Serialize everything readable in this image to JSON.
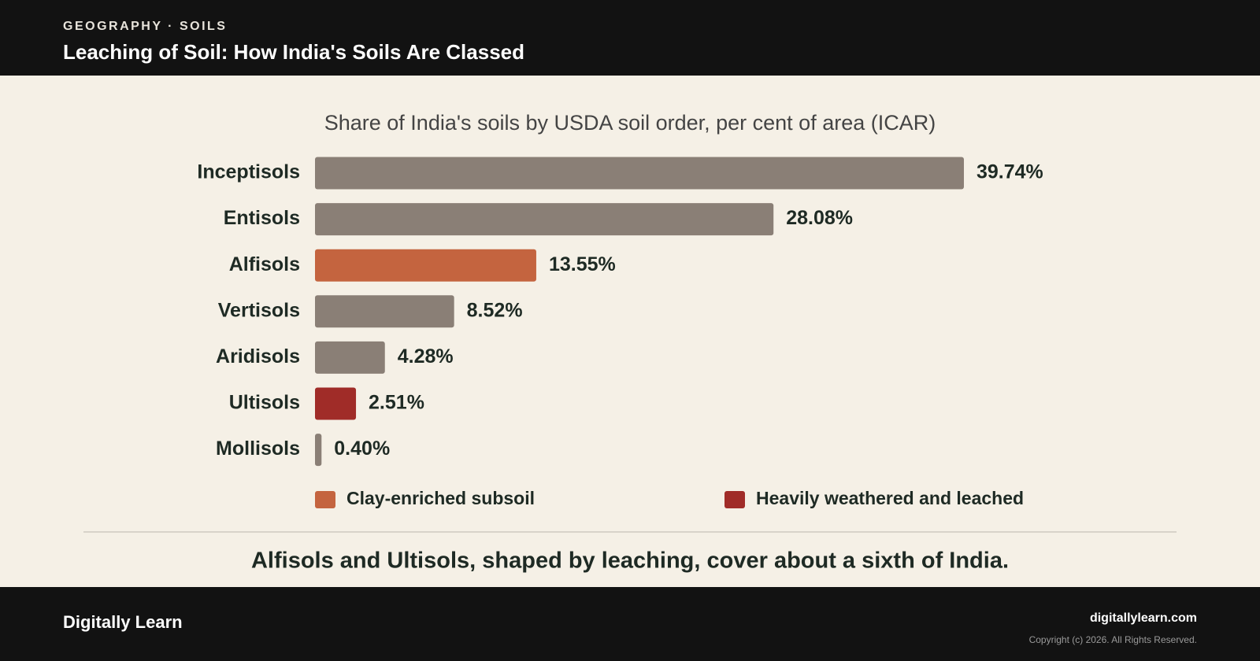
{
  "header": {
    "kicker": "GEOGRAPHY · SOILS",
    "title": "Leaching of Soil: How India's Soils Are Classed"
  },
  "chart_data": {
    "type": "bar",
    "orientation": "horizontal",
    "subtitle": "Share of India's soils by USDA soil order, per cent of area (ICAR)",
    "categories": [
      "Inceptisols",
      "Entisols",
      "Alfisols",
      "Vertisols",
      "Aridisols",
      "Ultisols",
      "Mollisols"
    ],
    "values": [
      39.74,
      28.08,
      13.55,
      8.52,
      4.28,
      2.51,
      0.4
    ],
    "value_labels": [
      "39.74%",
      "28.08%",
      "13.55%",
      "8.52%",
      "4.28%",
      "2.51%",
      "0.40%"
    ],
    "colors": [
      "#8a7f76",
      "#8a7f76",
      "#c4643f",
      "#8a7f76",
      "#8a7f76",
      "#a02c28",
      "#8a7f76"
    ],
    "legend": [
      {
        "label": "Clay-enriched subsoil",
        "color": "#c4643f"
      },
      {
        "label": "Heavily weathered and leached",
        "color": "#a02c28"
      }
    ],
    "caption": "Alfisols and Ultisols, shaped by leaching, cover about a sixth of India."
  },
  "footer": {
    "brand": "Digitally Learn",
    "url": "digitallylearn.com",
    "copyright": "Copyright (c) 2026. All Rights Reserved."
  }
}
